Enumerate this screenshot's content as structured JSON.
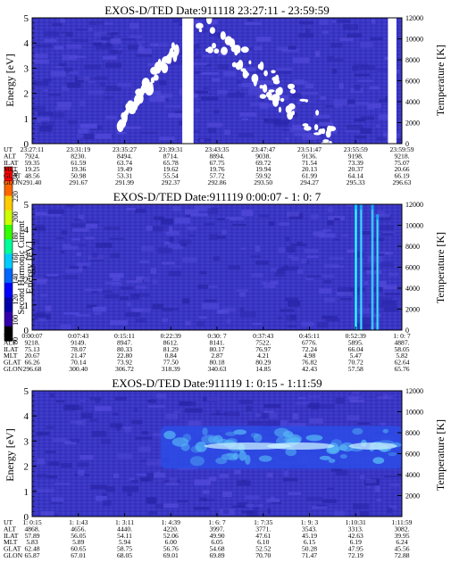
{
  "colorbar": {
    "label": "Second Harmonic Current",
    "ticks": [
      "240",
      "220",
      "200",
      "180",
      "160",
      "140",
      "120",
      "100",
      "80"
    ],
    "colors": [
      "#ff0000",
      "#ff6600",
      "#ffcc00",
      "#ccff00",
      "#33ff00",
      "#00ff99",
      "#00ccff",
      "#0066ff",
      "#0000ff",
      "#0000aa",
      "#3300aa",
      "#000000"
    ]
  },
  "colors": {
    "background": "#3a36c4",
    "patch_dark": "#2a26aa",
    "patch_light": "#5048d8",
    "band_mid": "#2c4ce8",
    "band_bright": "#55b5f5",
    "hot": "#c8f0ff",
    "spike": "#00d0ff",
    "gap": "#ffffff"
  },
  "panels": [
    {
      "title": "EXOS-D/TED   Date:911118  23:27:11 - 23:59:59",
      "ylabel": "Energy [eV]",
      "y2label": "Temperature [K]",
      "yticks": [
        "0",
        "1",
        "2",
        "3",
        "4",
        "5"
      ],
      "y2ticks": [
        "0",
        "2000",
        "4000",
        "6000",
        "8000",
        "10000",
        "12000"
      ],
      "rows": [
        {
          "label": "UT",
          "values": [
            "23:27:11",
            "23:31:19",
            "23:35:27",
            "23:39:31",
            "23:43:35",
            "23:47:47",
            "23:51:47",
            "23:55:59",
            "23:59:59"
          ]
        },
        {
          "label": "ALT",
          "values": [
            "7924.",
            "8230.",
            "8494.",
            "8714.",
            "8894.",
            "9038.",
            "9136.",
            "9198.",
            "9218."
          ]
        },
        {
          "label": "ILAT",
          "values": [
            "59.35",
            "61.59",
            "63.74",
            "65.78",
            "67.75",
            "69.72",
            "71.54",
            "73.39",
            "75.07"
          ]
        },
        {
          "label": "MLT",
          "values": [
            "19.25",
            "19.36",
            "19.49",
            "19.62",
            "19.76",
            "19.94",
            "20.13",
            "20.37",
            "20.66"
          ]
        },
        {
          "label": "GLAT",
          "values": [
            "48.56",
            "50.98",
            "53.31",
            "55.54",
            "57.72",
            "59.92",
            "61.99",
            "64.14",
            "66.19"
          ]
        },
        {
          "label": "GLON",
          "values": [
            "291.40",
            "291.67",
            "291.99",
            "292.37",
            "292.86",
            "293.50",
            "294.27",
            "295.33",
            "296.63"
          ]
        }
      ]
    },
    {
      "title": "EXOS-D/TED   Date:911119  0:00:07 - 1: 0: 7",
      "ylabel": "Energy [eV]",
      "y2label": "Temperature [K]",
      "yticks": [
        "0",
        "1",
        "2",
        "3",
        "4",
        "5"
      ],
      "y2ticks": [
        "0",
        "2000",
        "4000",
        "6000",
        "8000",
        "10000",
        "12000"
      ],
      "rows": [
        {
          "label": "UT",
          "values": [
            "0:00:07",
            "0:07:43",
            "0:15:11",
            "0:22:39",
            "0:30: 7",
            "0:37:43",
            "0:45:11",
            "0:52:39",
            "1: 0: 7"
          ]
        },
        {
          "label": "ALT",
          "values": [
            "9218.",
            "9149.",
            "8947.",
            "8612.",
            "8141.",
            "7522.",
            "6776.",
            "5895.",
            "4887."
          ]
        },
        {
          "label": "ILAT",
          "values": [
            "75.13",
            "78.07",
            "80.33",
            "81.29",
            "80.17",
            "76.97",
            "72.24",
            "66.04",
            "58.05"
          ]
        },
        {
          "label": "MLT",
          "values": [
            "20.67",
            "21.47",
            "22.80",
            "0.84",
            "2.87",
            "4.21",
            "4.98",
            "5.47",
            "5.82"
          ]
        },
        {
          "label": "GLAT",
          "values": [
            "66.26",
            "70.14",
            "73.92",
            "77.50",
            "80.18",
            "80.29",
            "76.82",
            "70.72",
            "62.64"
          ]
        },
        {
          "label": "GLON",
          "values": [
            "296.68",
            "300.40",
            "306.72",
            "318.39",
            "340.63",
            "14.85",
            "42.43",
            "57.58",
            "65.76"
          ]
        }
      ]
    },
    {
      "title": "EXOS-D/TED   Date:911119  1: 0:15 - 1:11:59",
      "ylabel": "Energy [eV]",
      "y2label": "Temperature [K]",
      "yticks": [
        "0",
        "1",
        "2",
        "3",
        "4",
        "5"
      ],
      "y2ticks": [
        "2000",
        "4000",
        "6000",
        "8000",
        "10000",
        "12000"
      ],
      "rows": [
        {
          "label": "UT",
          "values": [
            "1: 0:15",
            "1: 1:43",
            "1: 3:11",
            "1: 4:39",
            "1: 6: 7",
            "1: 7:35",
            "1: 9: 3",
            "1:10:31",
            "1:11:59"
          ]
        },
        {
          "label": "ALT",
          "values": [
            "4868.",
            "4656.",
            "4440.",
            "4220.",
            "3997.",
            "3771.",
            "3543.",
            "3313.",
            "3082."
          ]
        },
        {
          "label": "ILAT",
          "values": [
            "57.89",
            "56.05",
            "54.11",
            "52.06",
            "49.90",
            "47.61",
            "45.19",
            "42.63",
            "39.95"
          ]
        },
        {
          "label": "MLT",
          "values": [
            "5.83",
            "5.89",
            "5.94",
            "6.00",
            "6.05",
            "6.10",
            "6.15",
            "6.19",
            "6.24"
          ]
        },
        {
          "label": "GLAT",
          "values": [
            "62.48",
            "60.65",
            "58.75",
            "56.76",
            "54.68",
            "52.52",
            "50.28",
            "47.95",
            "45.56"
          ]
        },
        {
          "label": "GLON",
          "values": [
            "65.87",
            "67.01",
            "68.05",
            "69.01",
            "69.89",
            "70.70",
            "71.47",
            "72.19",
            "72.88"
          ]
        }
      ]
    }
  ],
  "chart_data": [
    {
      "type": "heatmap",
      "title": "EXOS-D/TED   Date:911118  23:27:11 - 23:59:59",
      "ylabel": "Energy [eV]",
      "y2label": "Temperature [K]",
      "ylim": [
        0,
        5
      ],
      "y2lim": [
        0,
        12000
      ],
      "colorbar_label": "Second Harmonic Current",
      "colorbar_range": [
        80,
        240
      ],
      "x_ticks": [
        "23:27:11",
        "23:31:19",
        "23:35:27",
        "23:39:31",
        "23:43:35",
        "23:47:47",
        "23:51:47",
        "23:55:59",
        "23:59:59"
      ],
      "gaps": [
        {
          "from": "23:40:30",
          "to": "23:41:30",
          "emin": 0,
          "emax": 5
        },
        {
          "from": "23:58:45",
          "to": "23:59:30",
          "emin": 0,
          "emax": 5
        }
      ],
      "saturated_regions": [
        {
          "from": "23:35:00",
          "to": "23:40:00",
          "emin": 0.9,
          "emax": 3.8
        },
        {
          "from": "23:42:00",
          "to": "23:54:00",
          "emin": 0.2,
          "emax": 4.6
        }
      ]
    },
    {
      "type": "heatmap",
      "title": "EXOS-D/TED   Date:911119  0:00:07 - 1: 0: 7",
      "ylabel": "Energy [eV]",
      "y2label": "Temperature [K]",
      "ylim": [
        0,
        5
      ],
      "y2lim": [
        0,
        12000
      ],
      "x_ticks": [
        "0:00:07",
        "0:07:43",
        "0:15:11",
        "0:22:39",
        "0:30: 7",
        "0:37:43",
        "0:45:11",
        "0:52:39",
        "1: 0: 7"
      ],
      "spikes": [
        {
          "time": "0:52:39",
          "emax": 5
        },
        {
          "time": "0:53:30",
          "emax": 5
        },
        {
          "time": "0:55:20",
          "emax": 5
        },
        {
          "time": "0:56:10",
          "emax": 4.6
        }
      ]
    },
    {
      "type": "heatmap",
      "title": "EXOS-D/TED   Date:911119  1: 0:15 - 1:11:59",
      "ylabel": "Energy [eV]",
      "y2label": "Temperature [K]",
      "ylim": [
        0,
        5
      ],
      "y2lim": [
        0,
        12000
      ],
      "x_ticks": [
        "1: 0:15",
        "1: 1:43",
        "1: 3:11",
        "1: 4:39",
        "1: 6: 7",
        "1: 7:35",
        "1: 9: 3",
        "1:10:31",
        "1:11:59"
      ],
      "enhanced_band": {
        "from": "1: 4:20",
        "to": "1:11:59",
        "emin": 1.9,
        "emax": 3.6,
        "peak_energy": 2.8
      }
    }
  ]
}
